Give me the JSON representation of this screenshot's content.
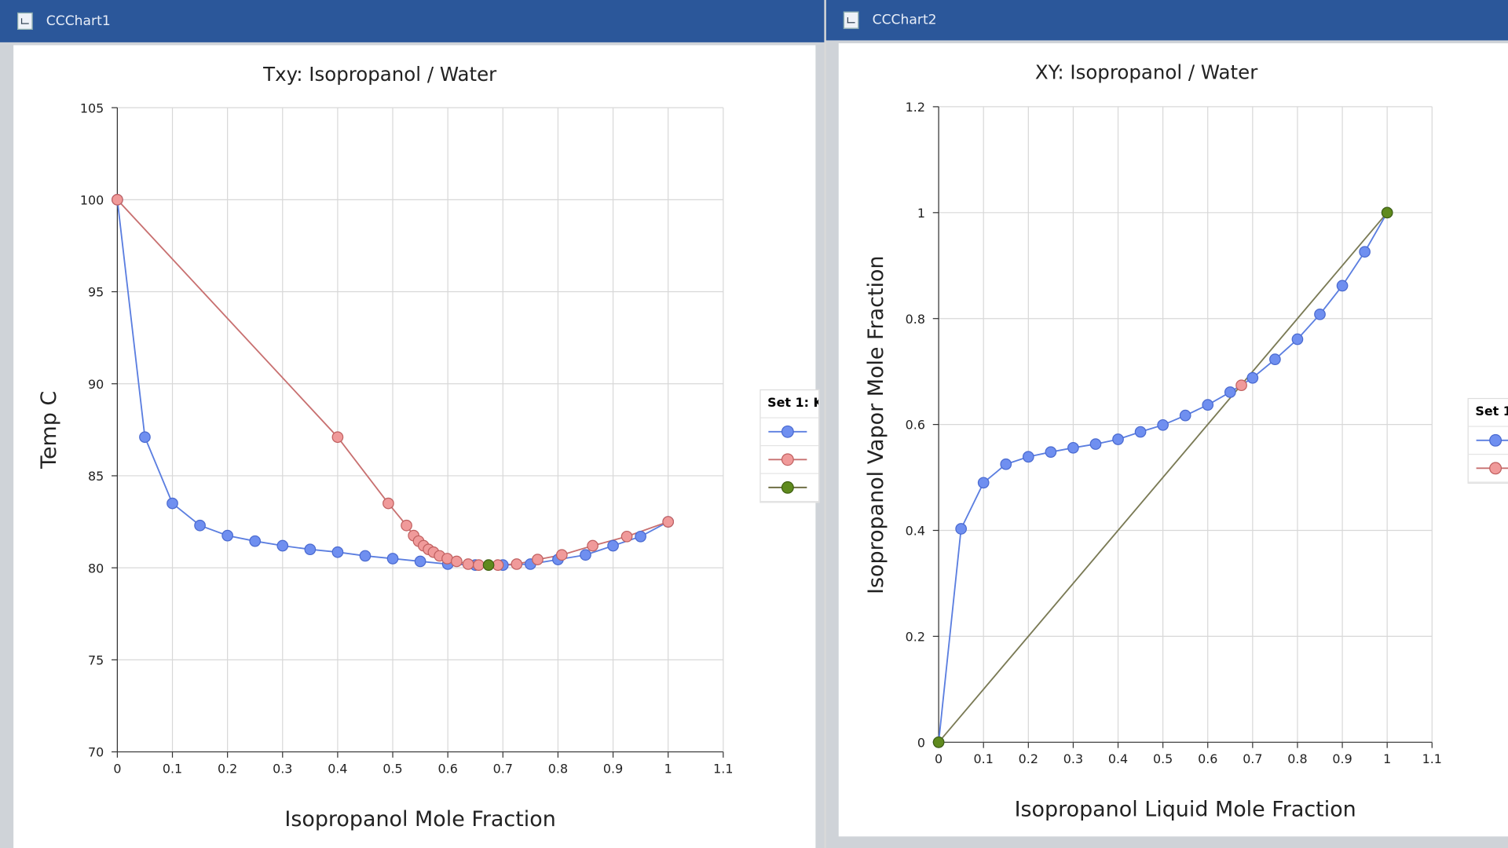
{
  "windows": [
    {
      "title": "CCChart1"
    },
    {
      "title": "CCChart2"
    }
  ],
  "colors": {
    "titlebar": "#2b579a",
    "blue": "#6f8ff0",
    "red": "#e88a8a",
    "green": "#5f8a1e",
    "blue_line": "#5b7ee0",
    "red_line": "#c87070",
    "diag_line": "#7a7a55"
  },
  "legend1": {
    "header": "Set 1: K"
  },
  "legend2": {
    "header": "Set 1"
  },
  "chart_data": [
    {
      "type": "scatter",
      "title": "Txy: Isopropanol / Water",
      "xlabel": "Isopropanol Mole Fraction",
      "ylabel": "Temp C",
      "xlim": [
        0,
        1.1
      ],
      "ylim": [
        70,
        105
      ],
      "grid": true,
      "legend": "right",
      "xticks": [
        "0",
        "0.1",
        "0.2",
        "0.3",
        "0.4",
        "0.5",
        "0.6",
        "0.7",
        "0.8",
        "0.9",
        "1",
        "1.1"
      ],
      "yticks": [
        "70",
        "75",
        "80",
        "85",
        "90",
        "95",
        "100",
        "105"
      ],
      "series": [
        {
          "color": "blue",
          "x": [
            0,
            0.05,
            0.1,
            0.15,
            0.2,
            0.25,
            0.3,
            0.35,
            0.4,
            0.45,
            0.5,
            0.55,
            0.6,
            0.65,
            0.7,
            0.75,
            0.8,
            0.85,
            0.9,
            0.95,
            1.0
          ],
          "y": [
            100,
            87.1,
            83.5,
            82.3,
            81.75,
            81.45,
            81.2,
            81.0,
            80.85,
            80.65,
            80.5,
            80.35,
            80.2,
            80.15,
            80.15,
            80.2,
            80.45,
            80.7,
            81.2,
            81.7,
            82.5
          ]
        },
        {
          "color": "red",
          "x": [
            0,
            0.4,
            0.492,
            0.525,
            0.538,
            0.547,
            0.556,
            0.565,
            0.574,
            0.585,
            0.599,
            0.616,
            0.637,
            0.656,
            0.691,
            0.725,
            0.763,
            0.807,
            0.863,
            0.925,
            1.0
          ],
          "y": [
            100,
            87.1,
            83.5,
            82.3,
            81.75,
            81.45,
            81.2,
            81.0,
            80.85,
            80.65,
            80.5,
            80.35,
            80.2,
            80.15,
            80.15,
            80.2,
            80.45,
            80.7,
            81.2,
            81.7,
            82.5
          ]
        },
        {
          "color": "green",
          "x": [
            0.674
          ],
          "y": [
            80.15
          ]
        }
      ]
    },
    {
      "type": "scatter",
      "title": "XY: Isopropanol / Water",
      "xlabel": "Isopropanol Liquid Mole Fraction",
      "ylabel": "Isopropanol Vapor Mole Fraction",
      "xlim": [
        0,
        1.1
      ],
      "ylim": [
        0,
        1.2
      ],
      "grid": true,
      "legend": "right",
      "xticks": [
        "0",
        "0.1",
        "0.2",
        "0.3",
        "0.4",
        "0.5",
        "0.6",
        "0.7",
        "0.8",
        "0.9",
        "1",
        "1.1"
      ],
      "yticks": [
        "0",
        "0.2",
        "0.4",
        "0.6",
        "0.8",
        "1",
        "1.2"
      ],
      "series": [
        {
          "color": "blue",
          "x": [
            0,
            0.05,
            0.1,
            0.15,
            0.2,
            0.25,
            0.3,
            0.35,
            0.4,
            0.45,
            0.5,
            0.55,
            0.6,
            0.65,
            0.7,
            0.75,
            0.8,
            0.85,
            0.9,
            0.95,
            1.0
          ],
          "y": [
            0,
            0.403,
            0.49,
            0.525,
            0.539,
            0.548,
            0.556,
            0.563,
            0.572,
            0.586,
            0.599,
            0.617,
            0.637,
            0.661,
            0.688,
            0.723,
            0.761,
            0.808,
            0.862,
            0.926,
            1.0
          ]
        },
        {
          "color": "red",
          "x": [
            0.675
          ],
          "y": [
            0.674
          ]
        },
        {
          "color": "green",
          "x": [
            0,
            1
          ],
          "y": [
            0,
            1
          ]
        }
      ],
      "diagonal": {
        "x": [
          0,
          1
        ],
        "y": [
          0,
          1
        ]
      }
    }
  ]
}
